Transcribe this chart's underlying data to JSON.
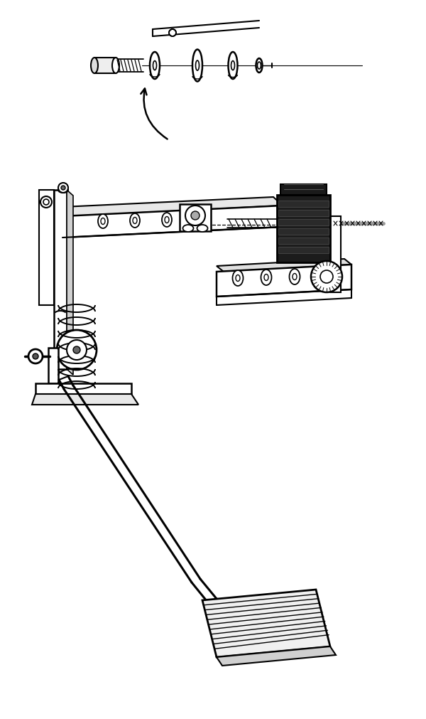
{
  "bg_color": "#ffffff",
  "line_color": "#000000",
  "fig_width": 6.0,
  "fig_height": 10.12,
  "dpi": 100
}
